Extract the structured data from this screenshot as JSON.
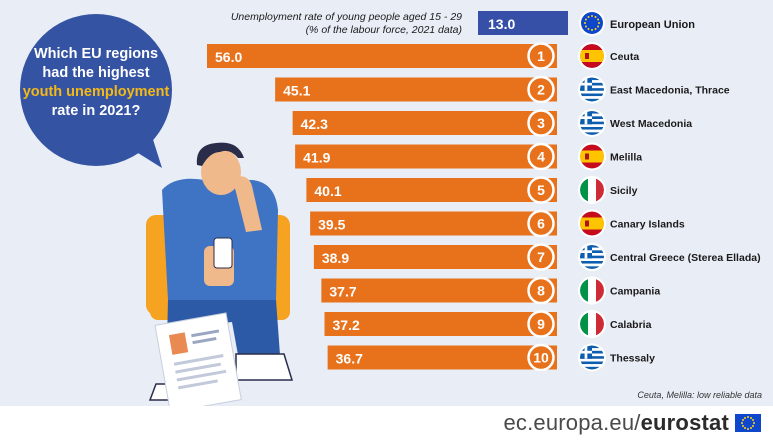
{
  "chart_data": {
    "type": "bar",
    "title": "Which EU regions had the highest youth unemployment rate in 2021?",
    "title_lines": [
      "Which EU regions",
      "had the highest",
      "youth unemployment",
      "rate in 2021?"
    ],
    "highlight_line": 2,
    "header_line1": "Unemployment rate of young people aged 15 - 29",
    "header_line2": "(% of the labour force, 2021 data)",
    "reference": {
      "label": "European Union",
      "value": 13.0,
      "display": "13.0",
      "flag": "eu-flag"
    },
    "categories": [
      "Ceuta",
      "East Macedonia, Thrace",
      "West Macedonia",
      "Melilla",
      "Sicily",
      "Canary Islands",
      "Central Greece (Sterea Ellada)",
      "Campania",
      "Calabria",
      "Thessaly"
    ],
    "values": [
      56.0,
      45.1,
      42.3,
      41.9,
      40.1,
      39.5,
      38.9,
      37.7,
      37.2,
      36.7
    ],
    "value_labels": [
      "56.0",
      "45.1",
      "42.3",
      "41.9",
      "40.1",
      "39.5",
      "38.9",
      "37.7",
      "37.2",
      "36.7"
    ],
    "ranks": [
      "1",
      "2",
      "3",
      "4",
      "5",
      "6",
      "7",
      "8",
      "9",
      "10"
    ],
    "flags": [
      "spain-flag",
      "greece-flag",
      "greece-flag",
      "spain-flag",
      "italy-flag",
      "spain-flag",
      "greece-flag",
      "italy-flag",
      "italy-flag",
      "greece-flag"
    ],
    "footnote": "Ceuta, Melilla: low reliable data",
    "colors": {
      "bar": "#e8721c",
      "eu_bar": "#3550a6",
      "bubble": "#3553a3",
      "highlight": "#f5b915",
      "background": "#e9edf6"
    }
  },
  "footer": {
    "site": "ec.europa.eu/",
    "brand": "eurostat"
  }
}
